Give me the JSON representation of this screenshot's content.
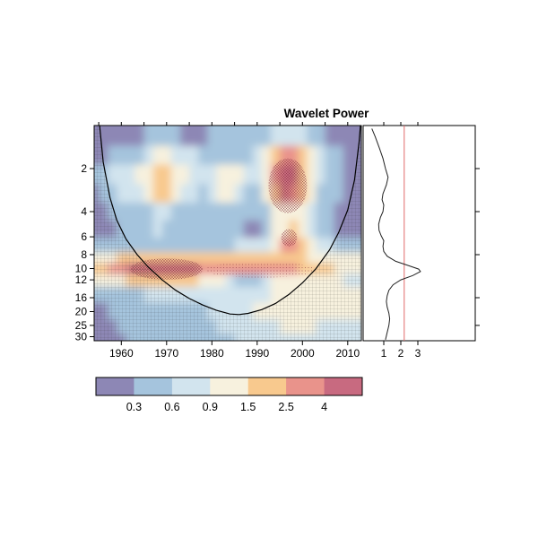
{
  "title": "Wavelet Power",
  "colors": {
    "background": "#ffffff",
    "axis": "#000000",
    "coi_line": "#000000",
    "spectrum_line": "#222222",
    "significance_line": "#e06a6a"
  },
  "chart_data": {
    "type": "heatmap",
    "title": "Wavelet Power",
    "xlabel": "",
    "ylabel": "",
    "x_range": [
      1954,
      2013
    ],
    "y_range": [
      1,
      32
    ],
    "x_ticks": [
      1960,
      1970,
      1980,
      1990,
      2000,
      2010
    ],
    "x_minor_ticks": [
      1955,
      1960,
      1965,
      1970,
      1975,
      1980,
      1985,
      1990,
      1995,
      2000,
      2005,
      2010
    ],
    "y_ticks": [
      2,
      4,
      6,
      8,
      10,
      12,
      16,
      20,
      25,
      30
    ],
    "color_breaks": [
      0.3,
      0.6,
      0.9,
      1.5,
      2.5,
      4
    ],
    "legend_labels": [
      "0.3",
      "0.6",
      "0.9",
      "1.5",
      "2.5",
      "4"
    ],
    "palette": [
      "#8d87b5",
      "#a5c4dd",
      "#d2e4ee",
      "#f7f1de",
      "#f8c98e",
      "#e9938b",
      "#c86a80"
    ],
    "x_years": [
      1954,
      1956,
      1958,
      1960,
      1962,
      1964,
      1966,
      1968,
      1970,
      1972,
      1974,
      1976,
      1978,
      1980,
      1982,
      1984,
      1986,
      1988,
      1990,
      1992,
      1994,
      1996,
      1998,
      2000,
      2002,
      2004,
      2006,
      2008,
      2010,
      2012
    ],
    "y_periods": [
      1.2,
      1.6,
      2.2,
      3,
      4,
      5.3,
      7,
      8.5,
      10,
      12,
      15,
      20,
      26,
      32
    ],
    "values": [
      [
        0.2,
        0.2,
        0.2,
        0.2,
        0.25,
        0.25,
        0.3,
        0.35,
        0.35,
        0.3,
        0.25,
        0.25,
        0.25,
        0.3,
        0.3,
        0.3,
        0.3,
        0.3,
        0.4,
        0.5,
        0.7,
        0.8,
        0.8,
        0.6,
        0.4,
        0.3,
        0.25,
        0.2,
        0.2,
        0.2
      ],
      [
        0.2,
        0.25,
        0.3,
        0.4,
        0.5,
        0.55,
        0.7,
        1.0,
        1.0,
        0.8,
        0.65,
        0.6,
        0.55,
        0.5,
        0.5,
        0.5,
        0.45,
        0.5,
        0.6,
        0.9,
        1.6,
        2.8,
        2.9,
        1.7,
        0.9,
        0.6,
        0.4,
        0.3,
        0.25,
        0.2
      ],
      [
        0.3,
        0.45,
        0.65,
        0.8,
        0.8,
        0.9,
        1.2,
        1.9,
        2.0,
        1.3,
        0.9,
        0.8,
        0.75,
        0.85,
        1.1,
        1.2,
        0.9,
        0.65,
        0.6,
        1.0,
        2.6,
        4.6,
        4.6,
        2.2,
        1.2,
        0.7,
        0.45,
        0.3,
        0.25,
        0.2
      ],
      [
        0.25,
        0.35,
        0.5,
        0.6,
        0.65,
        0.75,
        1.0,
        1.6,
        1.5,
        1.0,
        0.7,
        0.6,
        0.55,
        0.65,
        0.95,
        1.05,
        0.7,
        0.5,
        0.5,
        0.9,
        2.2,
        4.0,
        3.8,
        1.8,
        0.9,
        0.55,
        0.4,
        0.3,
        0.25,
        0.2
      ],
      [
        0.2,
        0.25,
        0.3,
        0.35,
        0.4,
        0.45,
        0.55,
        0.75,
        0.7,
        0.55,
        0.45,
        0.4,
        0.35,
        0.35,
        0.45,
        0.5,
        0.45,
        0.4,
        0.45,
        0.55,
        0.95,
        1.35,
        1.4,
        1.0,
        0.6,
        0.45,
        0.35,
        0.25,
        0.2,
        0.2
      ],
      [
        0.2,
        0.22,
        0.27,
        0.3,
        0.33,
        0.37,
        0.45,
        0.6,
        0.55,
        0.45,
        0.4,
        0.37,
        0.33,
        0.33,
        0.37,
        0.4,
        0.35,
        0.28,
        0.28,
        0.4,
        1.0,
        1.45,
        1.5,
        1.05,
        0.65,
        0.45,
        0.33,
        0.25,
        0.2,
        0.2
      ],
      [
        0.3,
        0.35,
        0.42,
        0.48,
        0.52,
        0.55,
        0.55,
        0.55,
        0.55,
        0.52,
        0.5,
        0.5,
        0.48,
        0.48,
        0.52,
        0.57,
        0.6,
        0.6,
        0.62,
        0.8,
        1.3,
        2.7,
        2.7,
        1.5,
        1.0,
        0.8,
        0.6,
        0.45,
        0.35,
        0.3
      ],
      [
        1.0,
        1.2,
        1.4,
        1.6,
        1.8,
        1.9,
        2.0,
        2.05,
        2.0,
        1.95,
        1.9,
        1.9,
        1.85,
        1.8,
        1.8,
        1.8,
        1.8,
        1.7,
        1.65,
        1.7,
        1.8,
        1.9,
        1.85,
        1.6,
        1.4,
        1.25,
        1.1,
        1.0,
        0.95,
        0.9
      ],
      [
        1.8,
        2.2,
        2.7,
        3.2,
        4.0,
        4.6,
        5.0,
        5.0,
        4.8,
        4.5,
        4.2,
        4.0,
        3.8,
        3.4,
        3.2,
        3.1,
        3.0,
        2.9,
        2.85,
        2.85,
        2.9,
        2.85,
        2.6,
        2.2,
        2.0,
        1.8,
        1.6,
        1.45,
        1.3,
        1.2
      ],
      [
        0.9,
        1.0,
        1.2,
        1.45,
        1.7,
        2.0,
        2.1,
        2.0,
        1.9,
        1.8,
        1.6,
        1.5,
        1.4,
        1.2,
        1.0,
        0.8,
        0.5,
        0.35,
        0.4,
        0.6,
        0.9,
        1.1,
        1.2,
        1.15,
        1.05,
        1.0,
        0.95,
        0.9,
        0.85,
        0.8
      ],
      [
        0.35,
        0.35,
        0.4,
        0.45,
        0.5,
        0.55,
        0.6,
        0.62,
        0.62,
        0.62,
        0.62,
        0.62,
        0.62,
        0.62,
        0.62,
        0.65,
        0.7,
        0.7,
        0.75,
        0.8,
        0.9,
        1.0,
        1.0,
        1.0,
        1.0,
        1.0,
        1.0,
        0.95,
        0.9,
        0.9
      ],
      [
        0.25,
        0.27,
        0.3,
        0.32,
        0.35,
        0.4,
        0.42,
        0.45,
        0.45,
        0.47,
        0.5,
        0.52,
        0.55,
        0.6,
        0.62,
        0.67,
        0.72,
        0.8,
        0.9,
        1.0,
        1.1,
        1.1,
        1.12,
        1.12,
        1.1,
        1.1,
        1.05,
        1.0,
        1.0,
        1.0
      ],
      [
        0.2,
        0.22,
        0.25,
        0.3,
        0.32,
        0.35,
        0.4,
        0.42,
        0.45,
        0.45,
        0.5,
        0.5,
        0.55,
        0.55,
        0.6,
        0.6,
        0.65,
        0.7,
        0.75,
        0.8,
        0.85,
        0.9,
        0.9,
        0.9,
        0.9,
        0.87,
        0.85,
        0.82,
        0.8,
        0.8
      ],
      [
        0.2,
        0.2,
        0.22,
        0.25,
        0.3,
        0.3,
        0.35,
        0.4,
        0.4,
        0.45,
        0.45,
        0.5,
        0.5,
        0.5,
        0.55,
        0.55,
        0.6,
        0.6,
        0.65,
        0.7,
        0.75,
        0.8,
        0.8,
        0.8,
        0.8,
        0.8,
        0.75,
        0.75,
        0.7,
        0.7
      ]
    ],
    "coi": [
      [
        1955.2,
        1.0
      ],
      [
        1956,
        1.8
      ],
      [
        1957.5,
        3.2
      ],
      [
        1959,
        4.6
      ],
      [
        1961,
        6.2
      ],
      [
        1963.5,
        8.0
      ],
      [
        1966,
        9.8
      ],
      [
        1969,
        12.0
      ],
      [
        1972,
        14.2
      ],
      [
        1975,
        16.2
      ],
      [
        1978,
        18.0
      ],
      [
        1981,
        19.6
      ],
      [
        1984,
        20.8
      ],
      [
        1986,
        21.0
      ],
      [
        1988,
        20.6
      ],
      [
        1991,
        19.4
      ],
      [
        1994,
        17.6
      ],
      [
        1997,
        15.2
      ],
      [
        2000,
        12.6
      ],
      [
        2003,
        10.0
      ],
      [
        2006,
        7.4
      ],
      [
        2008,
        5.6
      ],
      [
        2010,
        3.9
      ],
      [
        2011.5,
        2.4
      ],
      [
        2012.5,
        1.3
      ],
      [
        2012.8,
        1.0
      ]
    ],
    "significance_regions": [
      {
        "year_min": 1962,
        "year_max": 1978,
        "period_min": 8.5,
        "period_max": 12,
        "style": "hatch"
      },
      {
        "year_min": 1978.5,
        "year_max": 2003,
        "period_min": 9,
        "period_max": 11.6,
        "style": "dots"
      },
      {
        "year_min": 1992.5,
        "year_max": 2001,
        "period_min": 1.7,
        "period_max": 4.1,
        "style": "hatch"
      },
      {
        "year_min": 1995.3,
        "year_max": 1998.8,
        "period_min": 5.3,
        "period_max": 7,
        "style": "hatch"
      }
    ],
    "global_spectrum": {
      "x_ticks": [
        1,
        2,
        3
      ],
      "right_period_ticks": [
        2,
        4,
        8,
        16,
        25
      ],
      "significance_value": 2.2,
      "points": [
        [
          0.3,
          1.05
        ],
        [
          0.5,
          1.2
        ],
        [
          0.75,
          1.45
        ],
        [
          0.95,
          1.7
        ],
        [
          1.1,
          2.0
        ],
        [
          1.25,
          2.3
        ],
        [
          1.15,
          2.6
        ],
        [
          0.95,
          3.0
        ],
        [
          0.9,
          3.3
        ],
        [
          1.0,
          3.6
        ],
        [
          0.95,
          4.0
        ],
        [
          0.8,
          4.4
        ],
        [
          0.7,
          4.9
        ],
        [
          0.72,
          5.4
        ],
        [
          0.85,
          5.9
        ],
        [
          1.0,
          6.4
        ],
        [
          0.95,
          7.0
        ],
        [
          1.0,
          7.6
        ],
        [
          1.2,
          8.2
        ],
        [
          1.7,
          8.9
        ],
        [
          2.4,
          9.5
        ],
        [
          3.05,
          10.1
        ],
        [
          3.15,
          10.5
        ],
        [
          2.7,
          11.2
        ],
        [
          2.0,
          12.0
        ],
        [
          1.55,
          13.0
        ],
        [
          1.3,
          14.2
        ],
        [
          1.2,
          15.5
        ],
        [
          1.15,
          17.0
        ],
        [
          1.2,
          18.6
        ],
        [
          1.3,
          20.5
        ],
        [
          1.35,
          22.5
        ],
        [
          1.3,
          25.0
        ],
        [
          1.2,
          28.0
        ],
        [
          1.1,
          31.5
        ]
      ]
    }
  }
}
